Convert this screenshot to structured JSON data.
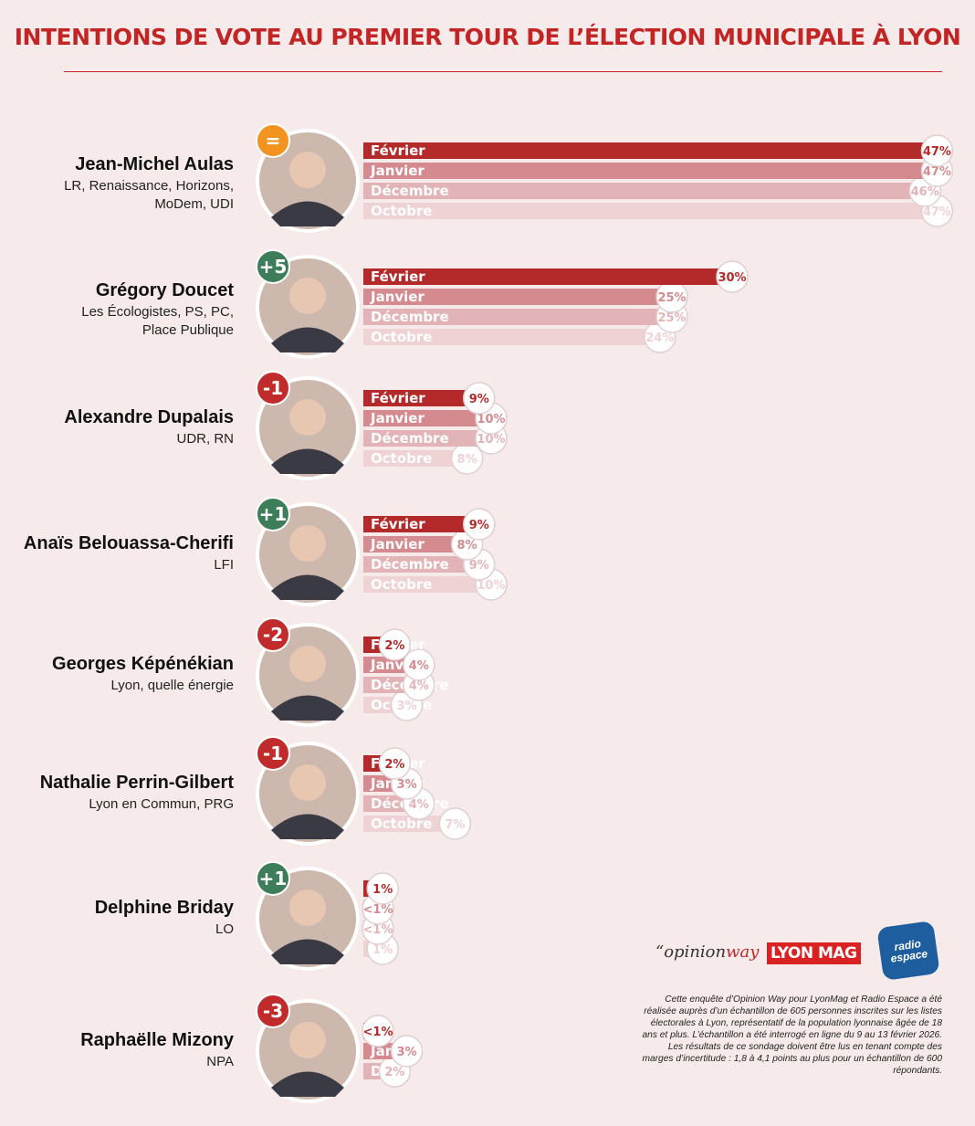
{
  "title": "INTENTIONS DE VOTE AU PREMIER TOUR DE L’ÉLECTION MUNICIPALE À LYON",
  "logos": {
    "opinionway_a": "“opinion",
    "opinionway_b": "way",
    "lyonmag": "LYON MAG",
    "radio_a": "radio",
    "radio_b": "espace"
  },
  "note": "Cette enquête d’Opinion Way pour LyonMag et Radio Espace a été réalisée auprès d’un échantillon de 605 personnes inscrites sur les listes électorales à Lyon, représentatif de la population lyonnaise âgée de 18 ans et plus. L’échantillon a été interrogé en ligne du 9 au 13 février 2026. Les résultats de ce sondage doivent être lus en tenant compte des marges d’incertitude : 1,8 à 4,1 points au plus pour un échantillon de 600 répondants.",
  "colors": {
    "title": "#c32424",
    "fevrier": "#b42a2a",
    "janvier": "#d48a8e",
    "decembre": "#e3b4b7",
    "octobre": "#efd2d4",
    "up": "#3d7d5a",
    "down": "#c22b2b",
    "equal": "#f39320"
  },
  "chart_data": {
    "type": "bar",
    "orientation": "horizontal",
    "unit": "%",
    "series_names": [
      "Février",
      "Janvier",
      "Décembre",
      "Octobre"
    ],
    "candidates": [
      {
        "name": "Jean-Michel Aulas",
        "party_lines": [
          "LR, Renaissance, Horizons,",
          "MoDem, UDI"
        ],
        "change": "=",
        "trend": "equal",
        "values": [
          47,
          47,
          46,
          47
        ],
        "value_labels": [
          "47%",
          "47%",
          "46%",
          "47%"
        ],
        "bar_labels": [
          "Février",
          "Janvier",
          "Décembre",
          "Octobre"
        ]
      },
      {
        "name": "Grégory Doucet",
        "party_lines": [
          "Les Écologistes, PS, PC,",
          "Place Publique"
        ],
        "change": "+5",
        "trend": "up",
        "values": [
          30,
          25,
          25,
          24
        ],
        "value_labels": [
          "30%",
          "25%",
          "25%",
          "24%"
        ],
        "bar_labels": [
          "Février",
          "Janvier",
          "Décembre",
          "Octobre"
        ]
      },
      {
        "name": "Alexandre Dupalais",
        "party_lines": [
          "UDR, RN"
        ],
        "change": "-1",
        "trend": "down",
        "values": [
          9,
          10,
          10,
          8
        ],
        "value_labels": [
          "9%",
          "10%",
          "10%",
          "8%"
        ],
        "bar_labels": [
          "Février",
          "Janvier",
          "Décembre",
          "Octobre"
        ]
      },
      {
        "name": "Anaïs Belouassa-Cherifi",
        "party_lines": [
          "LFI"
        ],
        "change": "+1",
        "trend": "up",
        "values": [
          9,
          8,
          9,
          10
        ],
        "value_labels": [
          "9%",
          "8%",
          "9%",
          "10%"
        ],
        "bar_labels": [
          "Février",
          "Janvier",
          "Décembre",
          "Octobre"
        ]
      },
      {
        "name": "Georges Képénékian",
        "party_lines": [
          "Lyon, quelle énergie"
        ],
        "change": "-2",
        "trend": "down",
        "values": [
          2,
          4,
          4,
          3
        ],
        "value_labels": [
          "2%",
          "4%",
          "4%",
          "3%"
        ],
        "bar_labels": [
          "Février",
          "Janvier",
          "Décembre",
          "Octobre"
        ]
      },
      {
        "name": "Nathalie Perrin-Gilbert",
        "party_lines": [
          "Lyon en Commun, PRG"
        ],
        "change": "-1",
        "trend": "down",
        "values": [
          2,
          3,
          4,
          7
        ],
        "value_labels": [
          "2%",
          "3%",
          "4%",
          "7%"
        ],
        "bar_labels": [
          "Février",
          "Janvier",
          "Décembre",
          "Octobre"
        ]
      },
      {
        "name": "Delphine Briday",
        "party_lines": [
          "LO"
        ],
        "change": "+1",
        "trend": "up",
        "values": [
          1,
          0.5,
          0.5,
          1
        ],
        "value_labels": [
          "1%",
          "<1%",
          "<1%",
          "1%"
        ],
        "bar_labels": [
          "",
          "",
          "",
          ""
        ]
      },
      {
        "name": "Raphaëlle Mizony",
        "party_lines": [
          "NPA"
        ],
        "change": "-3",
        "trend": "down",
        "values": [
          0.5,
          3,
          2
        ],
        "value_labels": [
          "<1%",
          "3%",
          "2%"
        ],
        "bar_labels": [
          "",
          "Janvier",
          "Déc."
        ]
      }
    ]
  }
}
